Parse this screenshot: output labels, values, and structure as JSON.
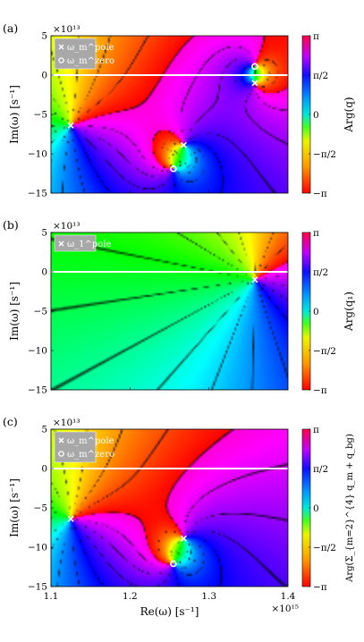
{
  "chart_data": [
    {
      "type": "heatmap",
      "panel_label": "(a)",
      "y_exponent": "×10¹³",
      "ylabel": "Im(ω) [s⁻¹]",
      "colorbar_label": "Arg(q)",
      "xlim": [
        1100000000000000.0,
        1400000000000000.0
      ],
      "ylim": [
        -150000000000000.0,
        50000000000000.0
      ],
      "yticks": [
        5,
        0,
        -5,
        -10,
        -15
      ],
      "colorbar_ticks": [
        "π",
        "π/2",
        "0",
        "−π/2",
        "−π"
      ],
      "legend": [
        "ω_m^pole",
        "ω_m^zero"
      ],
      "poles": [
        [
          1125000000000000.0,
          -64000000000000.0
        ],
        [
          1268000000000000.0,
          -89000000000000.0
        ],
        [
          1358000000000000.0,
          -10000000000000.0
        ]
      ],
      "zeros": [
        [
          1255000000000000.0,
          -119000000000000.0
        ],
        [
          1358000000000000.0,
          11000000000000.0
        ]
      ],
      "real_axis_line": true
    },
    {
      "type": "heatmap",
      "panel_label": "(b)",
      "y_exponent": "×10¹³",
      "ylabel": "Im(ω) [s⁻¹]",
      "colorbar_label": "Arg(q₁)",
      "xlim": [
        1100000000000000.0,
        1400000000000000.0
      ],
      "ylim": [
        -150000000000000.0,
        50000000000000.0
      ],
      "yticks": [
        5,
        0,
        -5,
        -10,
        -15
      ],
      "colorbar_ticks": [
        "π",
        "π/2",
        "0",
        "−π/2",
        "−π"
      ],
      "legend": [
        "ω_1^pole"
      ],
      "poles": [
        [
          1358000000000000.0,
          -10000000000000.0
        ]
      ],
      "zeros": [],
      "real_axis_line": true
    },
    {
      "type": "heatmap",
      "panel_label": "(c)",
      "y_exponent": "×10¹³",
      "ylabel": "Im(ω) [s⁻¹]",
      "xlabel": "Re(ω) [s⁻¹]",
      "x_exponent": "×10¹⁵",
      "colorbar_label": "Arg(Σ_{m=2}^{4} q_m + q_bg)",
      "xlim": [
        1100000000000000.0,
        1400000000000000.0
      ],
      "ylim": [
        -150000000000000.0,
        50000000000000.0
      ],
      "xticks": [
        "1.1",
        "1.2",
        "1.3",
        "1.4"
      ],
      "yticks": [
        5,
        0,
        -5,
        -10,
        -15
      ],
      "colorbar_ticks": [
        "π",
        "π/2",
        "0",
        "−π/2",
        "−π"
      ],
      "legend": [
        "ω_m^pole",
        "ω_m^zero"
      ],
      "poles": [
        [
          1125000000000000.0,
          -64000000000000.0
        ],
        [
          1268000000000000.0,
          -89000000000000.0
        ]
      ],
      "zeros": [
        [
          1255000000000000.0,
          -121000000000000.0
        ]
      ],
      "real_axis_line": true
    }
  ]
}
